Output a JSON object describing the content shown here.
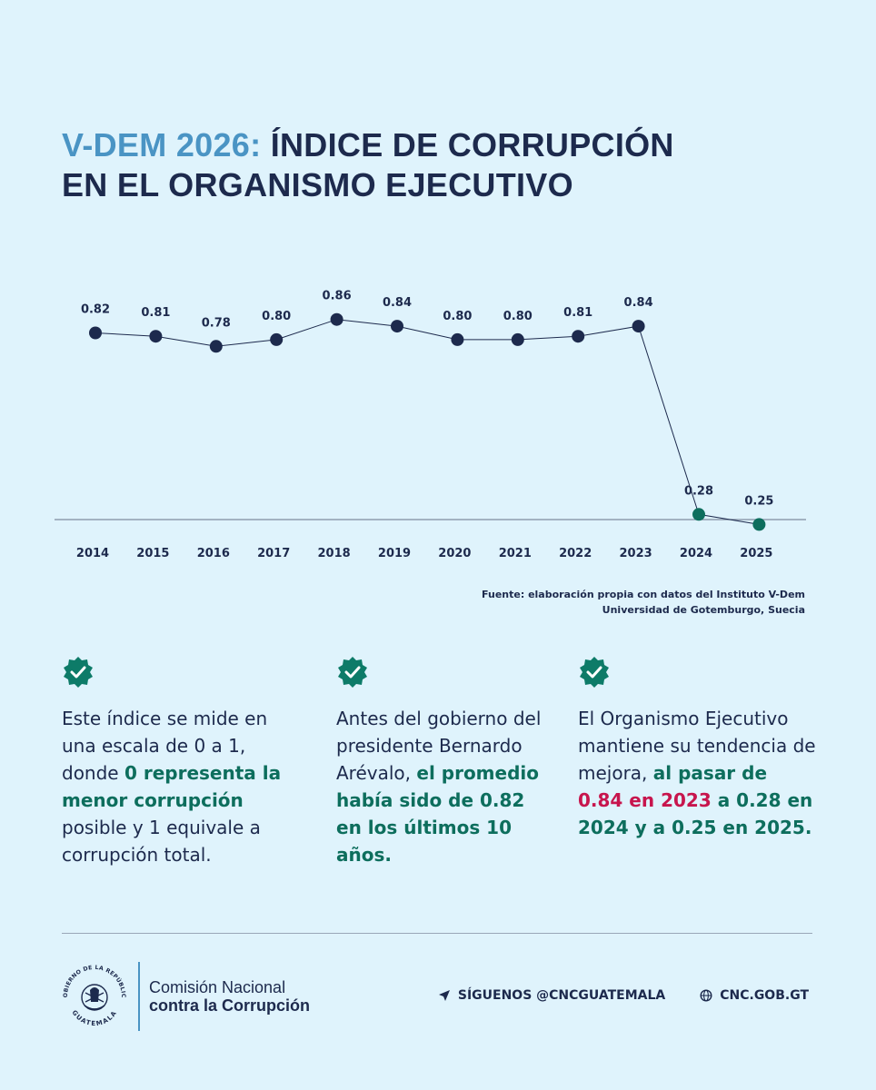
{
  "header": {
    "title_accent": "V-DEM 2026:",
    "title_line1": " ÍNDICE DE CORRUPCIÓN",
    "title_line2": "EN EL ORGANISMO EJECUTIVO"
  },
  "colors": {
    "navy": "#1d2a4d",
    "teal": "#0d6e5d",
    "accent_blue": "#4a94c4",
    "red": "#c7154d",
    "background": "#dff3fc"
  },
  "chart_data": {
    "type": "line",
    "title": "Índice de corrupción en el Organismo Ejecutivo",
    "categories": [
      "2014",
      "2015",
      "2016",
      "2017",
      "2018",
      "2019",
      "2020",
      "2021",
      "2022",
      "2023",
      "2024",
      "2025"
    ],
    "values": [
      0.82,
      0.81,
      0.78,
      0.8,
      0.86,
      0.84,
      0.8,
      0.8,
      0.81,
      0.84,
      0.28,
      0.25
    ],
    "labels": [
      "0.82",
      "0.81",
      "0.78",
      "0.80",
      "0.86",
      "0.84",
      "0.80",
      "0.80",
      "0.81",
      "0.84",
      "0.28",
      "0.25"
    ],
    "highlight_from_index": 10,
    "xlabel": "",
    "ylabel": "",
    "ylim": [
      0,
      1
    ],
    "grid": false
  },
  "source": {
    "label": "Fuente:",
    "line1": " elaboración propia con datos del Instituto V-Dem",
    "line2": "Universidad de Gotemburgo, Suecia"
  },
  "columns": [
    {
      "icon": "verified-check-icon",
      "t1": "Este índice se mide en una escala de 0 a 1, donde ",
      "t2": "0 representa la menor corrupción",
      "t3": " posible y 1 equivale a corrupción total."
    },
    {
      "icon": "verified-check-icon",
      "t1": "Antes del gobierno del presidente Bernardo Arévalo, ",
      "t2": "el promedio había sido de 0.82 en los últimos 10 años."
    },
    {
      "icon": "verified-check-icon",
      "t1": "El Organismo Ejecutivo mantiene su tendencia de mejora, ",
      "t2": "al pasar de ",
      "t3": "0.84 en 2023",
      "t4": " a 0.28 en 2024 y a 0.25 en 2025."
    }
  ],
  "footer": {
    "seal_top": "GOBIERNO DE LA REPÚBLICA",
    "seal_bottom": "GUATEMALA",
    "org_line1": "Comisión Nacional",
    "org_line2": "contra la Corrupción",
    "social": "SÍGUENOS @CNCGUATEMALA",
    "website": "CNC.GOB.GT"
  }
}
